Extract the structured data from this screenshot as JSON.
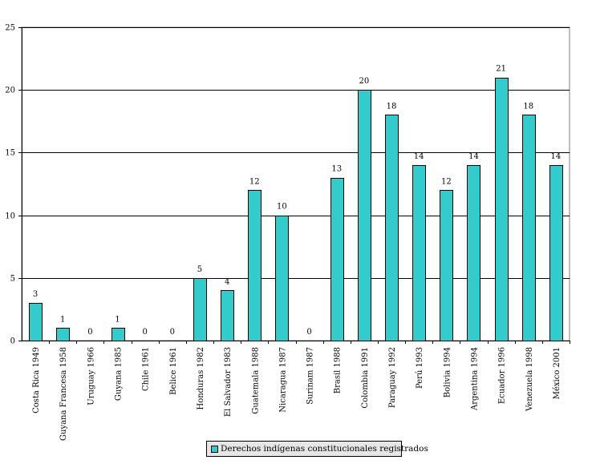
{
  "chart_data": {
    "type": "bar",
    "title": "",
    "xlabel": "",
    "ylabel": "",
    "ylim": [
      0,
      25
    ],
    "yticks": [
      0,
      5,
      10,
      15,
      20,
      25
    ],
    "grid": true,
    "legend_position": "bottom",
    "categories": [
      "Costa Rica 1949",
      "Guyana Francesa 1958",
      "Uruguay 1966",
      "Guyana 1985",
      "Chile 1961",
      "Belice 1961",
      "Honduras 1982",
      "El Salvador 1983",
      "Guatemala 1988",
      "Nicaragua 1987",
      "Surinam 1987",
      "Brasil 1988",
      "Colombia 1991",
      "Paraguay 1992",
      "Perú 1993",
      "Bolivia 1994",
      "Argentina 1994",
      "Ecuador 1996",
      "Venezuela 1998",
      "México 2001"
    ],
    "series": [
      {
        "name": "Derechos indígenas constitucionales registrados",
        "values": [
          3,
          1,
          0,
          1,
          0,
          0,
          5,
          4,
          12,
          10,
          0,
          13,
          20,
          18,
          14,
          12,
          14,
          21,
          18,
          14
        ],
        "color": "#33cccc"
      }
    ]
  }
}
